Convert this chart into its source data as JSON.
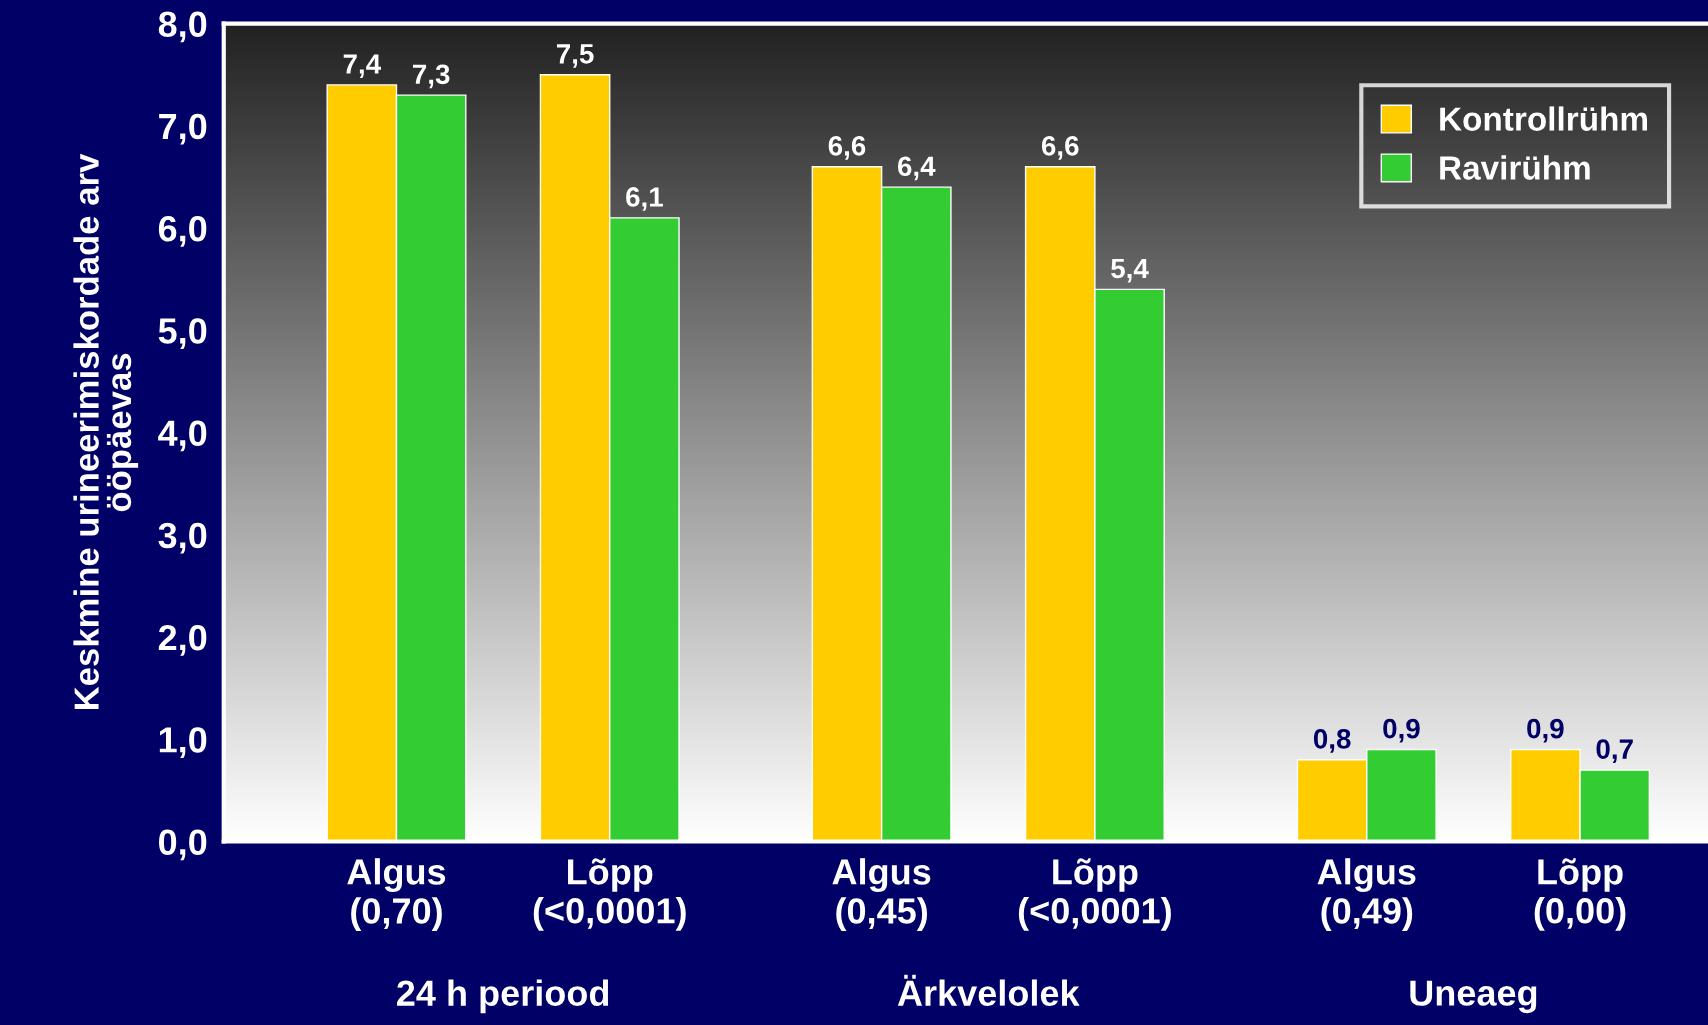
{
  "chart_data": {
    "type": "bar",
    "categories": [
      "Algus\n(0,70)",
      "Lõpp\n(<0,0001)",
      "Algus\n(0,45)",
      "Lõpp\n(<0,0001)",
      "Algus\n(0,49)",
      "Lõpp\n(0,00)"
    ],
    "series": [
      {
        "name": "Kontrollrühm",
        "color": "#ffcc00",
        "values": [
          7.4,
          7.5,
          6.6,
          6.6,
          0.8,
          0.9
        ],
        "value_labels": [
          "7,4",
          "7,5",
          "6,6",
          "6,6",
          "0,8",
          "0,9"
        ]
      },
      {
        "name": "Ravirühm",
        "color": "#33cc33",
        "values": [
          7.3,
          6.1,
          6.4,
          5.4,
          0.9,
          0.7
        ],
        "value_labels": [
          "7,3",
          "6,1",
          "6,4",
          "5,4",
          "0,9",
          "0,7"
        ]
      }
    ],
    "ylabel": "Keskmine urineerimiskordade arv\nööpäevas",
    "annotations": [
      "24 h periood",
      "Ärkvelolek",
      "Uneaeg"
    ],
    "ylim": [
      0,
      8
    ],
    "yticks": [
      {
        "value": 0,
        "label": "0,0"
      },
      {
        "value": 1,
        "label": "1,0"
      },
      {
        "value": 2,
        "label": "2,0"
      },
      {
        "value": 3,
        "label": "3,0"
      },
      {
        "value": 4,
        "label": "4,0"
      },
      {
        "value": 5,
        "label": "5,0"
      },
      {
        "value": 6,
        "label": "6,0"
      },
      {
        "value": 7,
        "label": "7,0"
      },
      {
        "value": 8,
        "label": "8,0"
      }
    ],
    "legend": "top right",
    "grid": false
  }
}
